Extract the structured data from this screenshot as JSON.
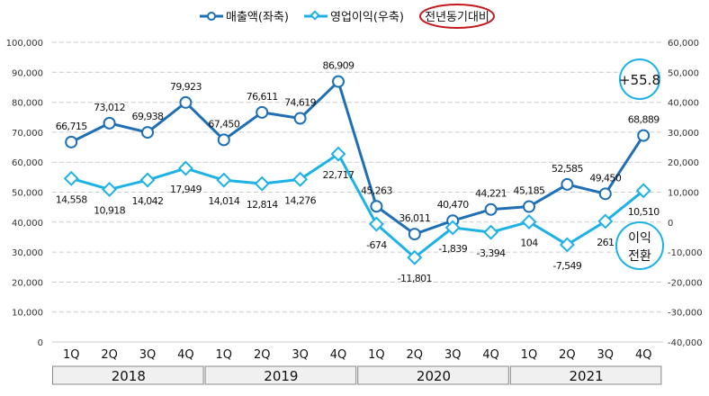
{
  "chart_data": {
    "type": "line",
    "years": [
      "2018",
      "2019",
      "2020",
      "2021"
    ],
    "categories": [
      "1Q",
      "2Q",
      "3Q",
      "4Q",
      "1Q",
      "2Q",
      "3Q",
      "4Q",
      "1Q",
      "2Q",
      "3Q",
      "4Q",
      "1Q",
      "2Q",
      "3Q",
      "4Q"
    ],
    "series": [
      {
        "name": "매출액(좌축)",
        "axis": "left",
        "color": "#1F6FB5",
        "marker": "circle",
        "values": [
          66715,
          73012,
          69938,
          79923,
          67450,
          76611,
          74619,
          86909,
          45263,
          36011,
          40470,
          44221,
          45185,
          52585,
          49450,
          68889
        ],
        "labels": [
          "66,715",
          "73,012",
          "69,938",
          "79,923",
          "67,450",
          "76,611",
          "74,619",
          "86,909",
          "45,263",
          "36,011",
          "40,470",
          "44,221",
          "45,185",
          "52,585",
          "49,450",
          "68,889"
        ]
      },
      {
        "name": "영업이익(우축)",
        "axis": "right",
        "color": "#1DB2E6",
        "marker": "diamond",
        "values": [
          14558,
          10918,
          14042,
          17949,
          14014,
          12814,
          14276,
          22717,
          -674,
          -11801,
          -1839,
          -3394,
          104,
          -7549,
          261,
          10510
        ],
        "labels": [
          "14,558",
          "10,918",
          "14,042",
          "17,949",
          "14,014",
          "12,814",
          "14,276",
          "22,717",
          "-674",
          "-11,801",
          "-1,839",
          "-3,394",
          "104",
          "-7,549",
          "261",
          "10,510"
        ]
      }
    ],
    "left_axis": {
      "min": 0,
      "max": 100000,
      "ticks": [
        "0",
        "10,000",
        "20,000",
        "30,000",
        "40,000",
        "50,000",
        "60,000",
        "70,000",
        "80,000",
        "90,000",
        "100,000"
      ]
    },
    "right_axis": {
      "min": -40000,
      "max": 60000,
      "ticks": [
        "-40,000",
        "-30,000",
        "-20,000",
        "-10,000",
        "0",
        "10,000",
        "20,000",
        "30,000",
        "40,000",
        "50,000",
        "60,000"
      ]
    },
    "legend": {
      "placement": "top-center",
      "extra": "전년동기대비"
    },
    "annotations": {
      "growth": "+55.8",
      "turn_line1": "이익",
      "turn_line2": "전환"
    },
    "grid": true
  }
}
